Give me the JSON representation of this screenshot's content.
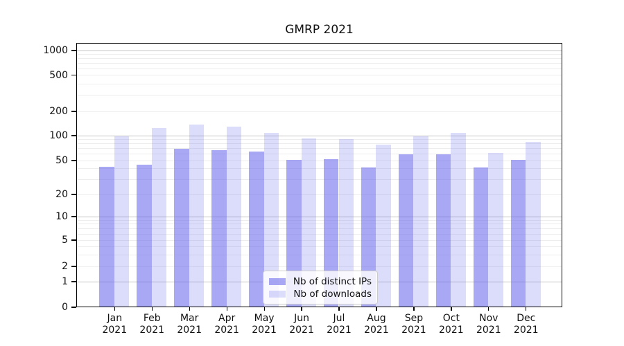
{
  "chart_data": {
    "type": "bar",
    "title": "GMRP 2021",
    "categories": [
      "Jan 2021",
      "Feb 2021",
      "Mar 2021",
      "Apr 2021",
      "May 2021",
      "Jun 2021",
      "Jul 2021",
      "Aug 2021",
      "Sep 2021",
      "Oct 2021",
      "Nov 2021",
      "Dec 2021"
    ],
    "series": [
      {
        "name": "Nb of distinct IPs",
        "fill": "rgba(97,97,235,0.55)",
        "swatch_hex": "#a8a8f0",
        "values": [
          43,
          45,
          70,
          68,
          65,
          51,
          52,
          42,
          60,
          60,
          42,
          51
        ]
      },
      {
        "name": "Nb of downloads",
        "fill": "rgba(97,97,235,0.22)",
        "swatch_hex": "#dcdcf9",
        "values": [
          100,
          125,
          140,
          131,
          110,
          93,
          91,
          79,
          99,
          110,
          63,
          85
        ]
      }
    ],
    "xlabel": "",
    "ylabel": "",
    "yscale": "symlog",
    "y_ticks": [
      0,
      1,
      2,
      5,
      10,
      20,
      50,
      100,
      200,
      500,
      1000
    ],
    "ylim": [
      0,
      1200
    ],
    "grid": "horizontal, log minor + major lines",
    "legend_position": "lower center inside plot",
    "colors": {
      "major_grid": "#c2c2c2",
      "minor_grid": "#ededed",
      "axis_frame": "#000000",
      "background": "#ffffff"
    }
  }
}
